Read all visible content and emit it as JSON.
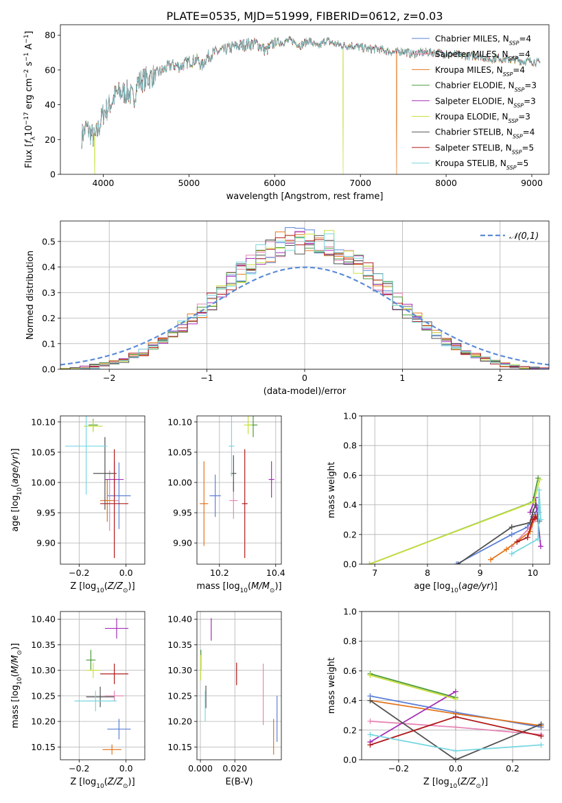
{
  "colors": {
    "Chabrier MILES": "#5b7fd6",
    "Salpeter MILES": "#e685b5",
    "Kroupa MILES": "#e3741b",
    "Chabrier ELODIE": "#4a9a3c",
    "Salpeter ELODIE": "#a32bb5",
    "Kroupa ELODIE": "#c8e03a",
    "Chabrier STELIB": "#505050",
    "Salpeter STELIB": "#b01818",
    "Kroupa STELIB": "#76d7e0"
  },
  "chart_data": [
    {
      "id": "spectrum",
      "type": "line",
      "title": "PLATE=0535, MJD=51999, FIBERID=0612, z=0.03",
      "xlabel": "wavelength [Angstrom, rest frame]",
      "ylabel": "Flux [f_λ 10^-17 erg cm^-2 s^-1 A^-1]",
      "xlim": [
        3500,
        9200
      ],
      "ylim": [
        0,
        86
      ],
      "xticks": [
        4000,
        5000,
        6000,
        7000,
        8000,
        9000
      ],
      "yticks": [
        0,
        20,
        40,
        60,
        80
      ],
      "legend_position": "upper-right",
      "series": [
        {
          "name": "Chabrier MILES, N_SSP=4",
          "key": "Chabrier MILES"
        },
        {
          "name": "Salpeter MILES, N_SSP=4",
          "key": "Salpeter MILES"
        },
        {
          "name": "Kroupa MILES, N_SSP=4",
          "key": "Kroupa MILES"
        },
        {
          "name": "Chabrier ELODIE, N_SSP=3",
          "key": "Chabrier ELODIE"
        },
        {
          "name": "Salpeter ELODIE, N_SSP=3",
          "key": "Salpeter ELODIE"
        },
        {
          "name": "Kroupa ELODIE, N_SSP=3",
          "key": "Kroupa ELODIE"
        },
        {
          "name": "Chabrier STELIB, N_SSP=4",
          "key": "Chabrier STELIB"
        },
        {
          "name": "Salpeter STELIB, N_SSP=5",
          "key": "Salpeter STELIB"
        },
        {
          "name": "Kroupa STELIB, N_SSP=5",
          "key": "Kroupa STELIB"
        }
      ],
      "continuum": [
        [
          3750,
          22
        ],
        [
          3800,
          27
        ],
        [
          3850,
          24
        ],
        [
          3900,
          20
        ],
        [
          3950,
          27
        ],
        [
          4000,
          35
        ],
        [
          4050,
          38
        ],
        [
          4100,
          42
        ],
        [
          4150,
          46
        ],
        [
          4200,
          47
        ],
        [
          4300,
          47
        ],
        [
          4350,
          43
        ],
        [
          4400,
          53
        ],
        [
          4500,
          55
        ],
        [
          4600,
          57
        ],
        [
          4700,
          60
        ],
        [
          4800,
          63
        ],
        [
          4900,
          62
        ],
        [
          5000,
          65
        ],
        [
          5100,
          66
        ],
        [
          5150,
          62
        ],
        [
          5200,
          67
        ],
        [
          5300,
          70
        ],
        [
          5400,
          71
        ],
        [
          5500,
          73
        ],
        [
          5600,
          74
        ],
        [
          5700,
          75
        ],
        [
          5800,
          75
        ],
        [
          5900,
          71
        ],
        [
          6000,
          76
        ],
        [
          6100,
          76
        ],
        [
          6200,
          77
        ],
        [
          6300,
          74
        ],
        [
          6400,
          77
        ],
        [
          6500,
          73
        ],
        [
          6600,
          77
        ],
        [
          6700,
          75
        ],
        [
          6800,
          74
        ],
        [
          6900,
          74
        ],
        [
          7000,
          73
        ],
        [
          7100,
          72
        ],
        [
          7200,
          72
        ],
        [
          7300,
          71
        ],
        [
          7400,
          70
        ],
        [
          7500,
          71
        ],
        [
          7600,
          69
        ],
        [
          7700,
          70
        ],
        [
          7800,
          70
        ],
        [
          7900,
          70
        ],
        [
          8000,
          69
        ],
        [
          8100,
          69
        ],
        [
          8200,
          68
        ],
        [
          8300,
          68
        ],
        [
          8400,
          68
        ],
        [
          8500,
          66
        ],
        [
          8600,
          67
        ],
        [
          8700,
          66
        ],
        [
          8800,
          66
        ],
        [
          8900,
          65
        ],
        [
          9000,
          65
        ],
        [
          9100,
          64
        ]
      ],
      "drops": [
        {
          "key": "Kroupa ELODIE",
          "x": 3900
        },
        {
          "key": "Kroupa ELODIE",
          "x": 6800
        },
        {
          "key": "Kroupa MILES",
          "x": 7420
        }
      ]
    },
    {
      "id": "residual_hist",
      "type": "line",
      "xlabel": "(data-model)/error",
      "ylabel": "Normed distribution",
      "xlim": [
        -2.5,
        2.5
      ],
      "ylim": [
        0,
        0.58
      ],
      "xticks": [
        -2,
        -1,
        0,
        1,
        2
      ],
      "yticks": [
        0.0,
        0.1,
        0.2,
        0.3,
        0.4,
        0.5
      ],
      "grid": true,
      "reference_curve": {
        "name": "𝒩(0,1)",
        "mu": 0,
        "sigma": 1,
        "color": "#5b8bd8",
        "style": "dashed"
      },
      "legend_position": "upper-right"
    },
    {
      "id": "age_vs_Z",
      "type": "scatter",
      "xlabel": "Z [log10(Z/Z⊙)]",
      "ylabel": "age [log10(age/yr)]",
      "xlim": [
        -0.28,
        0.08
      ],
      "ylim": [
        9.865,
        10.11
      ],
      "xticks": [
        -0.2,
        0.0
      ],
      "xticklabels": [
        "−0.2",
        "0.0"
      ],
      "yticks": [
        9.9,
        9.95,
        10.0,
        10.05,
        10.1
      ],
      "grid": true,
      "points": [
        {
          "key": "Chabrier MILES",
          "x": -0.03,
          "y": 9.978,
          "xerr": 0.05,
          "yerr": 0.055
        },
        {
          "key": "Salpeter MILES",
          "x": -0.07,
          "y": 9.97,
          "xerr": 0.04,
          "yerr": 0.05
        },
        {
          "key": "Kroupa MILES",
          "x": -0.08,
          "y": 9.97,
          "xerr": 0.03,
          "yerr": 0.035
        },
        {
          "key": "Chabrier ELODIE",
          "x": -0.14,
          "y": 10.095,
          "xerr": 0.02,
          "yerr": 0.01
        },
        {
          "key": "Salpeter ELODIE",
          "x": -0.05,
          "y": 10.005,
          "xerr": 0.04,
          "yerr": 0.03
        },
        {
          "key": "Kroupa ELODIE",
          "x": -0.14,
          "y": 10.093,
          "xerr": 0.04,
          "yerr": 0.01
        },
        {
          "key": "Chabrier STELIB",
          "x": -0.09,
          "y": 10.015,
          "xerr": 0.05,
          "yerr": 0.06
        },
        {
          "key": "Salpeter STELIB",
          "x": -0.05,
          "y": 9.965,
          "xerr": 0.06,
          "yerr": 0.09
        },
        {
          "key": "Kroupa STELIB",
          "x": -0.17,
          "y": 10.06,
          "xerr": 0.09,
          "yerr": 0.08
        }
      ]
    },
    {
      "id": "age_vs_mass",
      "type": "scatter",
      "xlabel": "mass [log10(M/M⊙)]",
      "ylabel": "",
      "xlim": [
        10.12,
        10.42
      ],
      "ylim": [
        9.865,
        10.11
      ],
      "xticks": [
        10.2,
        10.4
      ],
      "yticks": [
        9.9,
        9.95,
        10.0,
        10.05,
        10.1
      ],
      "grid": true,
      "points": [
        {
          "key": "Chabrier MILES",
          "x": 10.185,
          "y": 9.978,
          "xerr": 0.02,
          "yerr": 0.035
        },
        {
          "key": "Salpeter MILES",
          "x": 10.25,
          "y": 9.97,
          "xerr": 0.015,
          "yerr": 0.03
        },
        {
          "key": "Kroupa MILES",
          "x": 10.145,
          "y": 9.965,
          "xerr": 0.015,
          "yerr": 0.07
        },
        {
          "key": "Chabrier ELODIE",
          "x": 10.32,
          "y": 10.095,
          "xerr": 0.015,
          "yerr": 0.02
        },
        {
          "key": "Salpeter ELODIE",
          "x": 10.385,
          "y": 10.005,
          "xerr": 0.01,
          "yerr": 0.03
        },
        {
          "key": "Kroupa ELODIE",
          "x": 10.302,
          "y": 10.095,
          "xerr": 0.015,
          "yerr": 0.015
        },
        {
          "key": "Chabrier STELIB",
          "x": 10.25,
          "y": 10.015,
          "xerr": 0.01,
          "yerr": 0.03
        },
        {
          "key": "Salpeter STELIB",
          "x": 10.29,
          "y": 9.965,
          "xerr": 0.01,
          "yerr": 0.09
        },
        {
          "key": "Kroupa STELIB",
          "x": 10.243,
          "y": 10.06,
          "xerr": 0.01,
          "yerr": 0.05
        }
      ]
    },
    {
      "id": "weight_vs_age",
      "type": "line",
      "xlabel": "age [log10(age/yr)]",
      "ylabel": "mass weight",
      "xlim": [
        6.75,
        10.32
      ],
      "ylim": [
        0,
        1.0
      ],
      "xticks": [
        7,
        8,
        9,
        10
      ],
      "yticks": [
        0.0,
        0.2,
        0.4,
        0.6,
        0.8,
        1.0
      ],
      "grid": true,
      "series": [
        {
          "key": "Chabrier MILES",
          "x": [
            8.55,
            9.6,
            9.9,
            10.0,
            10.1
          ],
          "y": [
            0.0,
            0.2,
            0.25,
            0.32,
            0.38
          ]
        },
        {
          "key": "Salpeter MILES",
          "x": [
            9.6,
            9.95,
            10.05,
            10.12
          ],
          "y": [
            0.12,
            0.25,
            0.3,
            0.35
          ]
        },
        {
          "key": "Kroupa MILES",
          "x": [
            9.2,
            9.5,
            9.95,
            10.05
          ],
          "y": [
            0.03,
            0.1,
            0.22,
            0.33
          ]
        },
        {
          "key": "Chabrier ELODIE",
          "x": [
            6.9,
            10.0,
            10.1
          ],
          "y": [
            0.0,
            0.42,
            0.58
          ]
        },
        {
          "key": "Salpeter ELODIE",
          "x": [
            9.95,
            10.05,
            10.15
          ],
          "y": [
            0.35,
            0.45,
            0.12
          ]
        },
        {
          "key": "Kroupa ELODIE",
          "x": [
            6.9,
            10.02,
            10.13
          ],
          "y": [
            0.0,
            0.42,
            0.57
          ]
        },
        {
          "key": "Chabrier STELIB",
          "x": [
            8.58,
            9.6,
            9.95,
            10.0,
            10.05
          ],
          "y": [
            0.0,
            0.25,
            0.28,
            0.35,
            0.4
          ]
        },
        {
          "key": "Salpeter STELIB",
          "x": [
            9.7,
            9.9,
            10.0,
            10.05,
            10.12
          ],
          "y": [
            0.15,
            0.18,
            0.3,
            0.32,
            0.29
          ]
        },
        {
          "key": "Kroupa STELIB",
          "x": [
            9.6,
            10.1,
            10.12,
            10.15
          ],
          "y": [
            0.07,
            0.17,
            0.5,
            0.3
          ]
        }
      ]
    },
    {
      "id": "mass_vs_Z",
      "type": "scatter",
      "xlabel": "Z [log10(Z/Z⊙)]",
      "ylabel": "mass [log10(M/M⊙)]",
      "xlim": [
        -0.28,
        0.08
      ],
      "ylim": [
        10.125,
        10.415
      ],
      "xticks": [
        -0.2,
        0.0
      ],
      "xticklabels": [
        "−0.2",
        "0.0"
      ],
      "yticks": [
        10.15,
        10.2,
        10.25,
        10.3,
        10.35,
        10.4
      ],
      "grid": true,
      "points": [
        {
          "key": "Chabrier MILES",
          "x": -0.03,
          "y": 10.185,
          "xerr": 0.05,
          "yerr": 0.02
        },
        {
          "key": "Salpeter MILES",
          "x": -0.05,
          "y": 10.25,
          "xerr": 0.04,
          "yerr": 0.01
        },
        {
          "key": "Kroupa MILES",
          "x": -0.06,
          "y": 10.145,
          "xerr": 0.04,
          "yerr": 0.01
        },
        {
          "key": "Chabrier ELODIE",
          "x": -0.15,
          "y": 10.32,
          "xerr": 0.02,
          "yerr": 0.02
        },
        {
          "key": "Salpeter ELODIE",
          "x": -0.04,
          "y": 10.382,
          "xerr": 0.05,
          "yerr": 0.02
        },
        {
          "key": "Kroupa ELODIE",
          "x": -0.14,
          "y": 10.3,
          "xerr": 0.03,
          "yerr": 0.015
        },
        {
          "key": "Chabrier STELIB",
          "x": -0.11,
          "y": 10.248,
          "xerr": 0.06,
          "yerr": 0.02
        },
        {
          "key": "Salpeter STELIB",
          "x": -0.05,
          "y": 10.293,
          "xerr": 0.06,
          "yerr": 0.02
        },
        {
          "key": "Kroupa STELIB",
          "x": -0.13,
          "y": 10.24,
          "xerr": 0.09,
          "yerr": 0.02
        }
      ]
    },
    {
      "id": "mass_vs_ebv",
      "type": "scatter",
      "xlabel": "E(B-V)",
      "ylabel": "",
      "xlim": [
        -0.002,
        0.047
      ],
      "ylim": [
        10.125,
        10.415
      ],
      "xticks": [
        0.0,
        0.02
      ],
      "xticklabels": [
        "0.000",
        "0.020"
      ],
      "yticks": [
        10.15,
        10.2,
        10.25,
        10.3,
        10.35,
        10.4
      ],
      "grid": true,
      "points": [
        {
          "key": "Chabrier MILES",
          "x": 0.0445,
          "y": 10.205,
          "xerr": 0,
          "yerr": 0.045
        },
        {
          "key": "Salpeter MILES",
          "x": 0.0365,
          "y": 10.253,
          "xerr": 0,
          "yerr": 0.06
        },
        {
          "key": "Kroupa MILES",
          "x": 0.0425,
          "y": 10.17,
          "xerr": 0,
          "yerr": 0.035
        },
        {
          "key": "Chabrier ELODIE",
          "x": 0.0003,
          "y": 10.32,
          "xerr": 0,
          "yerr": 0.02
        },
        {
          "key": "Salpeter ELODIE",
          "x": 0.0063,
          "y": 10.38,
          "xerr": 0,
          "yerr": 0.022
        },
        {
          "key": "Kroupa ELODIE",
          "x": 0.0002,
          "y": 10.305,
          "xerr": 0,
          "yerr": 0.025
        },
        {
          "key": "Chabrier STELIB",
          "x": 0.0032,
          "y": 10.248,
          "xerr": 0,
          "yerr": 0.022
        },
        {
          "key": "Salpeter STELIB",
          "x": 0.021,
          "y": 10.293,
          "xerr": 0,
          "yerr": 0.022
        },
        {
          "key": "Kroupa STELIB",
          "x": 0.0028,
          "y": 10.23,
          "xerr": 0,
          "yerr": 0.03
        }
      ]
    },
    {
      "id": "weight_vs_Z",
      "type": "line",
      "xlabel": "Z [log10(Z/Z⊙)]",
      "ylabel": "mass weight",
      "xlim": [
        -0.33,
        0.33
      ],
      "ylim": [
        0,
        1.0
      ],
      "xticks": [
        -0.2,
        0.0,
        0.2
      ],
      "xticklabels": [
        "−0.2",
        "0.0",
        "0.2"
      ],
      "yticks": [
        0.0,
        0.2,
        0.4,
        0.6,
        0.8,
        1.0
      ],
      "grid": true,
      "series": [
        {
          "key": "Chabrier MILES",
          "x": [
            -0.3,
            0.0,
            0.3
          ],
          "y": [
            0.43,
            0.32,
            0.22
          ]
        },
        {
          "key": "Salpeter MILES",
          "x": [
            -0.3,
            0.0,
            0.3
          ],
          "y": [
            0.26,
            0.22,
            0.17
          ]
        },
        {
          "key": "Kroupa MILES",
          "x": [
            -0.3,
            0.0,
            0.3
          ],
          "y": [
            0.4,
            0.31,
            0.23
          ]
        },
        {
          "key": "Chabrier ELODIE",
          "x": [
            -0.3,
            0.0
          ],
          "y": [
            0.58,
            0.42
          ]
        },
        {
          "key": "Salpeter ELODIE",
          "x": [
            -0.3,
            0.0
          ],
          "y": [
            0.12,
            0.46
          ]
        },
        {
          "key": "Kroupa ELODIE",
          "x": [
            -0.3,
            0.0
          ],
          "y": [
            0.57,
            0.41
          ]
        },
        {
          "key": "Chabrier STELIB",
          "x": [
            -0.3,
            0.0,
            0.3
          ],
          "y": [
            0.4,
            0.0,
            0.24
          ]
        },
        {
          "key": "Salpeter STELIB",
          "x": [
            -0.3,
            0.0,
            0.3
          ],
          "y": [
            0.1,
            0.29,
            0.16
          ]
        },
        {
          "key": "Kroupa STELIB",
          "x": [
            -0.3,
            0.0,
            0.3
          ],
          "y": [
            0.17,
            0.06,
            0.1
          ]
        }
      ]
    }
  ]
}
